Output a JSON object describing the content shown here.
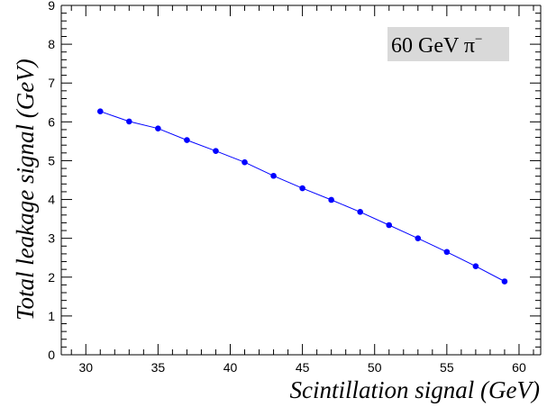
{
  "chart_data": {
    "type": "line",
    "title": "",
    "xlabel": "Scintillation signal (GeV)",
    "ylabel": "Total leakage signal (GeV)",
    "xlim": [
      28.3,
      61.5
    ],
    "ylim": [
      0,
      9
    ],
    "x_major_ticks": [
      30,
      35,
      40,
      45,
      50,
      55,
      60
    ],
    "y_major_ticks": [
      0,
      1,
      2,
      3,
      4,
      5,
      6,
      7,
      8,
      9
    ],
    "x_tick_labels": [
      "30",
      "35",
      "40",
      "45",
      "50",
      "55",
      "60"
    ],
    "y_tick_labels": [
      "0",
      "1",
      "2",
      "3",
      "4",
      "5",
      "6",
      "7",
      "8",
      "9"
    ],
    "legend": {
      "text": "60 GeV π",
      "superscript": "−",
      "placement": "top-right",
      "background": "#d9d9d9"
    },
    "grid": false,
    "series": [
      {
        "color": "#0000ff",
        "x": [
          31,
          33,
          35,
          37,
          39,
          41,
          43,
          45,
          47,
          49,
          51,
          53,
          55,
          57,
          59
        ],
        "y": [
          6.27,
          6.01,
          5.83,
          5.53,
          5.25,
          4.96,
          4.61,
          4.29,
          3.99,
          3.68,
          3.34,
          3.0,
          2.65,
          2.28,
          1.89
        ]
      }
    ]
  }
}
